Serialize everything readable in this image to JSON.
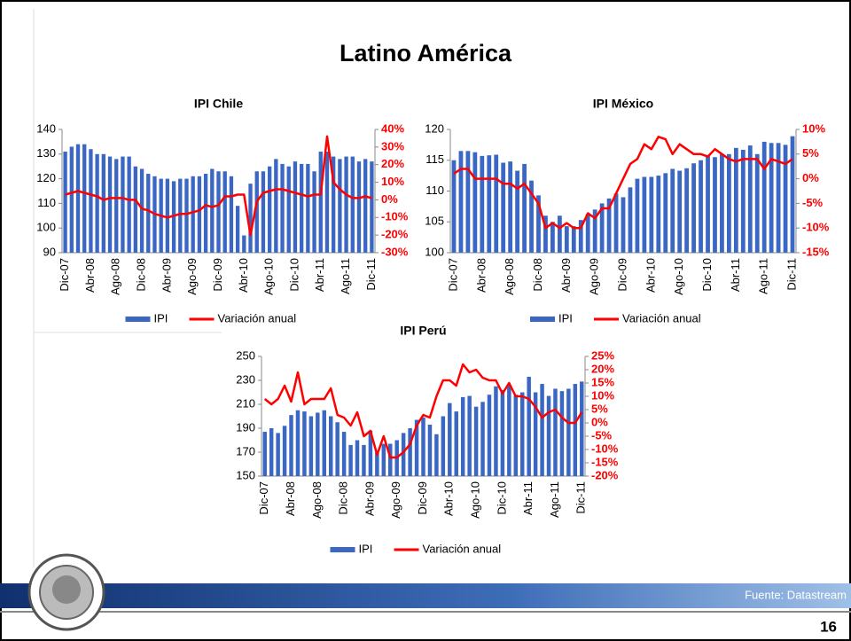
{
  "title": "Latino América",
  "source": "Fuente: Datastream",
  "page_number": "16",
  "chart_data": [
    {
      "type": "bar_line",
      "title": "IPI Chile",
      "categories": [
        "Dic-07",
        null,
        null,
        null,
        "Abr-08",
        null,
        null,
        null,
        "Ago-08",
        null,
        null,
        null,
        "Dic-08",
        null,
        null,
        null,
        "Abr-09",
        null,
        null,
        null,
        "Ago-09",
        null,
        null,
        null,
        "Dic-09",
        null,
        null,
        null,
        "Abr-10",
        null,
        null,
        null,
        "Ago-10",
        null,
        null,
        null,
        "Dic-10",
        null,
        null,
        null,
        "Abr-11",
        null,
        null,
        null,
        "Ago-11",
        null,
        null,
        null,
        "Dic-11"
      ],
      "series": [
        {
          "name": "IPI",
          "color": "#3a66c4",
          "values": [
            131,
            133,
            134,
            134,
            132,
            130,
            130,
            129,
            128,
            129,
            129,
            125,
            124,
            122,
            121,
            120,
            120,
            119,
            120,
            120,
            121,
            121,
            122,
            124,
            123,
            123,
            121,
            109,
            97,
            118,
            123,
            123,
            125,
            128,
            126,
            125,
            127,
            126,
            126,
            123,
            131,
            131,
            129,
            128,
            129,
            129,
            127,
            128,
            127
          ]
        },
        {
          "name": "Variación anual",
          "color": "#ff0000",
          "axis": "y2",
          "values": [
            3,
            4,
            5,
            4,
            3,
            2,
            0,
            1,
            1,
            1,
            0,
            0,
            -5,
            -6,
            -8,
            -9,
            -10,
            -9,
            -8,
            -8,
            -7,
            -6,
            -3,
            -4,
            -3,
            2,
            2,
            3,
            3,
            -20,
            -1,
            4,
            5,
            6,
            6,
            5,
            4,
            3,
            2,
            3,
            3,
            36,
            10,
            6,
            3,
            1,
            1,
            2,
            1
          ]
        }
      ],
      "ylim": [
        90,
        140
      ],
      "yticks": [
        90,
        100,
        110,
        120,
        130,
        140
      ],
      "y2lim": [
        -30,
        40
      ],
      "y2ticks": [
        {
          "value": -30,
          "label": "-30%"
        },
        {
          "value": -20,
          "label": "-20%"
        },
        {
          "value": -10,
          "label": "-10%"
        },
        {
          "value": 0,
          "label": "0%"
        },
        {
          "value": 10,
          "label": "10%"
        },
        {
          "value": 20,
          "label": "20%"
        },
        {
          "value": 30,
          "label": "30%"
        },
        {
          "value": 40,
          "label": "40%"
        }
      ]
    },
    {
      "type": "bar_line",
      "title": "IPI México",
      "categories": [
        "Dic-07",
        null,
        null,
        null,
        "Abr-08",
        null,
        null,
        null,
        "Ago-08",
        null,
        null,
        null,
        "Dic-08",
        null,
        null,
        null,
        "Abr-09",
        null,
        null,
        null,
        "Ago-09",
        null,
        null,
        null,
        "Dic-09",
        null,
        null,
        null,
        "Abr-10",
        null,
        null,
        null,
        "Ago-10",
        null,
        null,
        null,
        "Dic-10",
        null,
        null,
        null,
        "Abr-11",
        null,
        null,
        null,
        "Ago-11",
        null,
        null,
        null,
        "Dic-11"
      ],
      "series": [
        {
          "name": "IPI",
          "color": "#3a66c4",
          "values": [
            115,
            116.5,
            116.5,
            116.3,
            115.7,
            115.8,
            115.9,
            114.6,
            114.8,
            113.3,
            114.4,
            111.7,
            109.3,
            106,
            105,
            106,
            104.3,
            104.3,
            105.3,
            106.3,
            107,
            108,
            108.8,
            109.6,
            109,
            110.6,
            112,
            112.3,
            112.3,
            112.5,
            112.9,
            113.6,
            113.3,
            113.7,
            114.5,
            115,
            115.7,
            115.5,
            116,
            116,
            117,
            116.7,
            117.4,
            116,
            118,
            117.8,
            117.8,
            117.5,
            118.9
          ]
        },
        {
          "name": "Variación anual",
          "color": "#ff0000",
          "axis": "y2",
          "values": [
            1,
            2,
            2,
            0,
            0,
            0,
            0,
            -1,
            -1,
            -2,
            -1,
            -3,
            -5,
            -10,
            -9,
            -10,
            -9,
            -10,
            -10,
            -7,
            -8,
            -6,
            -6,
            -3,
            0,
            3,
            4,
            7,
            6,
            8.5,
            8,
            5,
            7,
            6,
            5,
            5,
            4.5,
            6,
            5,
            4,
            3.5,
            4,
            4,
            4,
            2,
            4,
            3.5,
            3,
            4
          ]
        }
      ],
      "ylim": [
        100,
        120
      ],
      "yticks": [
        100,
        105,
        110,
        115,
        120
      ],
      "y2lim": [
        -15,
        10
      ],
      "y2ticks": [
        {
          "value": -15,
          "label": "-15%"
        },
        {
          "value": -10,
          "label": "-10%"
        },
        {
          "value": -5,
          "label": "-5%"
        },
        {
          "value": 0,
          "label": "0%"
        },
        {
          "value": 5,
          "label": "5%"
        },
        {
          "value": 10,
          "label": "10%"
        }
      ]
    },
    {
      "type": "bar_line",
      "title": "IPI Perú",
      "categories": [
        "Dic-07",
        null,
        null,
        null,
        "Abr-08",
        null,
        null,
        null,
        "Ago-08",
        null,
        null,
        null,
        "Dic-08",
        null,
        null,
        null,
        "Abr-09",
        null,
        null,
        null,
        "Ago-09",
        null,
        null,
        null,
        "Dic-09",
        null,
        null,
        null,
        "Abr-10",
        null,
        null,
        null,
        "Ago-10",
        null,
        null,
        null,
        "Dic-10",
        null,
        null,
        null,
        "Abr-11",
        null,
        null,
        null,
        "Ago-11",
        null,
        null,
        null,
        "Dic-11"
      ],
      "series": [
        {
          "name": "IPI",
          "color": "#3a66c4",
          "values": [
            187,
            190,
            186,
            192,
            201,
            205,
            204,
            200,
            203,
            205,
            200,
            195,
            187,
            176,
            180,
            176,
            188,
            170,
            177,
            177,
            180,
            186,
            190,
            197,
            199,
            193,
            185,
            200,
            211,
            204,
            216,
            217,
            208,
            212,
            218,
            225,
            222,
            226,
            218,
            220,
            233,
            220,
            227,
            217,
            223,
            221,
            223,
            227,
            229
          ]
        },
        {
          "name": "Variación anual",
          "color": "#ff0000",
          "axis": "y2",
          "values": [
            9,
            7,
            9,
            14,
            8,
            19,
            7,
            9,
            9,
            9,
            13,
            3,
            2,
            -1,
            4,
            -5,
            -3,
            -12,
            -5,
            -13,
            -13,
            -11,
            -8,
            -1,
            3,
            2,
            10,
            16,
            16,
            14,
            22,
            19,
            20,
            17,
            16,
            16,
            11,
            15,
            10,
            10,
            9,
            6,
            2,
            4,
            5,
            2,
            0,
            0,
            4
          ]
        }
      ],
      "ylim": [
        150,
        250
      ],
      "yticks": [
        150,
        170,
        190,
        210,
        230,
        250
      ],
      "y2lim": [
        -20,
        25
      ],
      "y2ticks": [
        {
          "value": -20,
          "label": "-20%"
        },
        {
          "value": -15,
          "label": "-15%"
        },
        {
          "value": -10,
          "label": "-10%"
        },
        {
          "value": -5,
          "label": "-5%"
        },
        {
          "value": 0,
          "label": "0%"
        },
        {
          "value": 5,
          "label": "5%"
        },
        {
          "value": 10,
          "label": "10%"
        },
        {
          "value": 15,
          "label": "15%"
        },
        {
          "value": 20,
          "label": "20%"
        },
        {
          "value": 25,
          "label": "25%"
        }
      ]
    }
  ]
}
